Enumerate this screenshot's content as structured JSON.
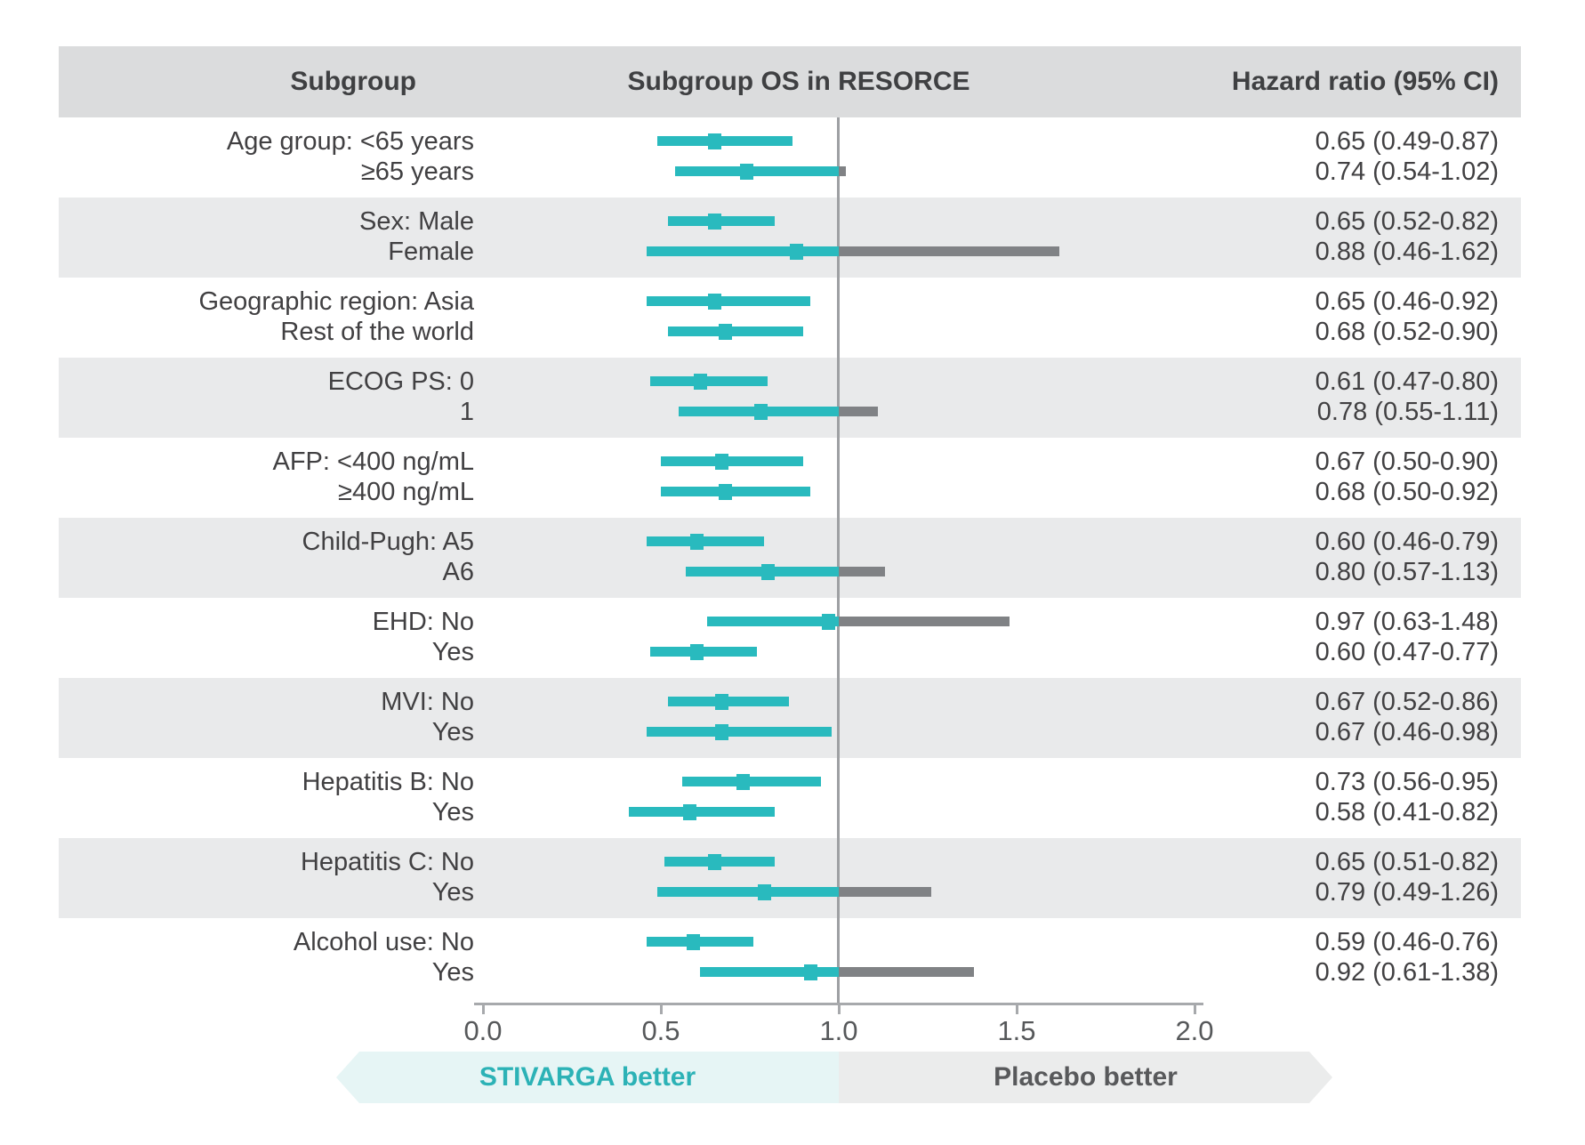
{
  "title_row": {
    "subgroup": "Subgroup",
    "plot": "Subgroup OS in RESORCE",
    "hazard": "Hazard ratio (95% CI)"
  },
  "axis": {
    "tick_labels": [
      "0.0",
      "0.5",
      "1.0",
      "1.5",
      "2.0"
    ],
    "min": 0.0,
    "max": 2.0,
    "reference_value": 1.0
  },
  "banner": {
    "left_label": "STIVARGA better",
    "right_label": "Placebo better"
  },
  "colors": {
    "teal_bar": "#29BABE",
    "ci_overflow_gray": "#808285",
    "row_shade": "#E9EAEB",
    "header_shade": "#DBDCDD",
    "axis_gray": "#A7A9AC",
    "reference_line": "#9EA0A3",
    "text_dark": "#414042",
    "banner_left_bg": "#E6F5F5",
    "banner_left_text": "#2CB2B6",
    "banner_right_bg": "#EBECEC",
    "banner_right_text": "#58595B"
  },
  "chart_data": {
    "type": "bar",
    "subtype": "forest-plot",
    "title": "Subgroup OS in RESORCE",
    "value_label": "Hazard ratio (95% CI)",
    "x_axis": {
      "range": [
        0.0,
        2.0
      ],
      "ticks": [
        0.0,
        0.5,
        1.0,
        1.5,
        2.0
      ],
      "reference_line": 1.0
    },
    "bands": [
      {
        "shaded": false,
        "rows": [
          {
            "label": "Age group: <65 years",
            "hr": 0.65,
            "ci_low": 0.49,
            "ci_high": 0.87,
            "hr_text": "0.65 (0.49-0.87)"
          },
          {
            "label": "≥65 years",
            "hr": 0.74,
            "ci_low": 0.54,
            "ci_high": 1.02,
            "hr_text": "0.74 (0.54-1.02)"
          }
        ]
      },
      {
        "shaded": true,
        "rows": [
          {
            "label": "Sex: Male",
            "hr": 0.65,
            "ci_low": 0.52,
            "ci_high": 0.82,
            "hr_text": "0.65 (0.52-0.82)"
          },
          {
            "label": "Female",
            "hr": 0.88,
            "ci_low": 0.46,
            "ci_high": 1.62,
            "hr_text": "0.88 (0.46-1.62)"
          }
        ]
      },
      {
        "shaded": false,
        "rows": [
          {
            "label": "Geographic region: Asia",
            "hr": 0.65,
            "ci_low": 0.46,
            "ci_high": 0.92,
            "hr_text": "0.65 (0.46-0.92)"
          },
          {
            "label": "Rest of the world",
            "hr": 0.68,
            "ci_low": 0.52,
            "ci_high": 0.9,
            "hr_text": "0.68 (0.52-0.90)"
          }
        ]
      },
      {
        "shaded": true,
        "rows": [
          {
            "label": "ECOG PS: 0",
            "hr": 0.61,
            "ci_low": 0.47,
            "ci_high": 0.8,
            "hr_text": "0.61 (0.47-0.80)"
          },
          {
            "label": "1",
            "hr": 0.78,
            "ci_low": 0.55,
            "ci_high": 1.11,
            "hr_text": "0.78 (0.55-1.11)"
          }
        ]
      },
      {
        "shaded": false,
        "rows": [
          {
            "label": "AFP: <400 ng/mL",
            "hr": 0.67,
            "ci_low": 0.5,
            "ci_high": 0.9,
            "hr_text": "0.67 (0.50-0.90)"
          },
          {
            "label": "≥400 ng/mL",
            "hr": 0.68,
            "ci_low": 0.5,
            "ci_high": 0.92,
            "hr_text": "0.68 (0.50-0.92)"
          }
        ]
      },
      {
        "shaded": true,
        "rows": [
          {
            "label": "Child-Pugh: A5",
            "hr": 0.6,
            "ci_low": 0.46,
            "ci_high": 0.79,
            "hr_text": "0.60 (0.46-0.79)"
          },
          {
            "label": "A6",
            "hr": 0.8,
            "ci_low": 0.57,
            "ci_high": 1.13,
            "hr_text": "0.80 (0.57-1.13)"
          }
        ]
      },
      {
        "shaded": false,
        "rows": [
          {
            "label": "EHD: No",
            "hr": 0.97,
            "ci_low": 0.63,
            "ci_high": 1.48,
            "hr_text": "0.97 (0.63-1.48)"
          },
          {
            "label": "Yes",
            "hr": 0.6,
            "ci_low": 0.47,
            "ci_high": 0.77,
            "hr_text": "0.60 (0.47-0.77)"
          }
        ]
      },
      {
        "shaded": true,
        "rows": [
          {
            "label": "MVI: No",
            "hr": 0.67,
            "ci_low": 0.52,
            "ci_high": 0.86,
            "hr_text": "0.67 (0.52-0.86)"
          },
          {
            "label": "Yes",
            "hr": 0.67,
            "ci_low": 0.46,
            "ci_high": 0.98,
            "hr_text": "0.67 (0.46-0.98)"
          }
        ]
      },
      {
        "shaded": false,
        "rows": [
          {
            "label": "Hepatitis B: No",
            "hr": 0.73,
            "ci_low": 0.56,
            "ci_high": 0.95,
            "hr_text": "0.73 (0.56-0.95)"
          },
          {
            "label": "Yes",
            "hr": 0.58,
            "ci_low": 0.41,
            "ci_high": 0.82,
            "hr_text": "0.58 (0.41-0.82)"
          }
        ]
      },
      {
        "shaded": true,
        "rows": [
          {
            "label": "Hepatitis C: No",
            "hr": 0.65,
            "ci_low": 0.51,
            "ci_high": 0.82,
            "hr_text": "0.65 (0.51-0.82)"
          },
          {
            "label": "Yes",
            "hr": 0.79,
            "ci_low": 0.49,
            "ci_high": 1.26,
            "hr_text": "0.79 (0.49-1.26)"
          }
        ]
      },
      {
        "shaded": false,
        "rows": [
          {
            "label": "Alcohol use: No",
            "hr": 0.59,
            "ci_low": 0.46,
            "ci_high": 0.76,
            "hr_text": "0.59 (0.46-0.76)"
          },
          {
            "label": "Yes",
            "hr": 0.92,
            "ci_low": 0.61,
            "ci_high": 1.38,
            "hr_text": "0.92 (0.61-1.38)"
          }
        ]
      }
    ]
  }
}
